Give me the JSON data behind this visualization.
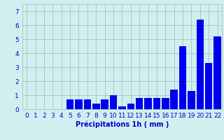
{
  "categories": [
    0,
    1,
    2,
    3,
    4,
    5,
    6,
    7,
    8,
    9,
    10,
    11,
    12,
    13,
    14,
    15,
    16,
    17,
    18,
    19,
    20,
    21,
    22
  ],
  "values": [
    0.0,
    0.0,
    0.0,
    0.0,
    0.0,
    0.7,
    0.7,
    0.7,
    0.4,
    0.7,
    1.0,
    0.2,
    0.4,
    0.8,
    0.8,
    0.8,
    0.8,
    1.4,
    4.5,
    1.3,
    6.4,
    3.3,
    5.2
  ],
  "bar_color": "#0000ee",
  "background_color": "#d0f0f0",
  "grid_color": "#b0b0b0",
  "text_color": "#0000cc",
  "xlabel": "Précipitations 1h ( mm )",
  "ylim": [
    0,
    7.5
  ],
  "yticks": [
    0,
    1,
    2,
    3,
    4,
    5,
    6,
    7
  ],
  "xlabel_fontsize": 7,
  "tick_fontsize": 6.5
}
